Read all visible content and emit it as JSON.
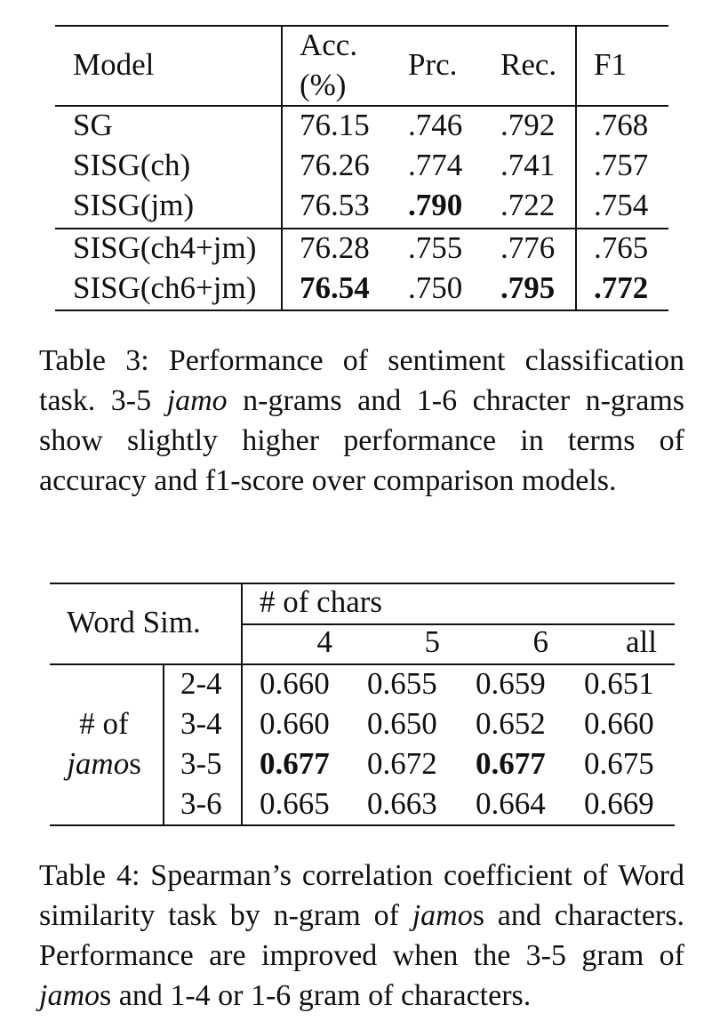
{
  "table3": {
    "headers": {
      "model": "Model",
      "acc_line1": "Acc.",
      "acc_line2": "(%)",
      "prc": "Prc.",
      "rec": "Rec.",
      "f1": "F1"
    },
    "rows": [
      {
        "model": "SG",
        "acc": "76.15",
        "prc": ".746",
        "rec": ".792",
        "f1": ".768"
      },
      {
        "model": "SISG(ch)",
        "acc": "76.26",
        "prc": ".774",
        "rec": ".741",
        "f1": ".757"
      },
      {
        "model": "SISG(jm)",
        "acc": "76.53",
        "prc": ".790",
        "rec": ".722",
        "f1": ".754"
      },
      {
        "model": "SISG(ch4+jm)",
        "acc": "76.28",
        "prc": ".755",
        "rec": ".776",
        "f1": ".765"
      },
      {
        "model": "SISG(ch6+jm)",
        "acc": "76.54",
        "prc": ".750",
        "rec": ".795",
        "f1": ".772"
      }
    ],
    "caption": {
      "label": "Table 3:",
      "text1": " Performance of sentiment classification task. 3-5 ",
      "italic1": "jamo",
      "text2": " n-grams and 1-6 chracter n-grams show slightly higher performance in terms of accuracy and f1-score over comparison models."
    }
  },
  "table4": {
    "header_label": "Word Sim.",
    "chars_label": "# of chars",
    "char_columns": [
      "4",
      "5",
      "6",
      "all"
    ],
    "jamo_label_line1": "# of",
    "jamo_label_italic": "jamo",
    "jamo_label_suffix": "s",
    "rows": [
      {
        "range": "2-4",
        "values": [
          "0.660",
          "0.655",
          "0.659",
          "0.651"
        ]
      },
      {
        "range": "3-4",
        "values": [
          "0.660",
          "0.650",
          "0.652",
          "0.660"
        ]
      },
      {
        "range": "3-5",
        "values": [
          "0.677",
          "0.672",
          "0.677",
          "0.675"
        ]
      },
      {
        "range": "3-6",
        "values": [
          "0.665",
          "0.663",
          "0.664",
          "0.669"
        ]
      }
    ],
    "caption": {
      "label": "Table 4:",
      "text1": " Spearman’s correlation coefficient of Word similarity task by n-gram of ",
      "italic1": "jamo",
      "text2": "s and characters. Performance are improved when the 3-5 gram of ",
      "italic2": "jamo",
      "text3": "s and 1-4 or 1-6 gram of characters."
    }
  }
}
